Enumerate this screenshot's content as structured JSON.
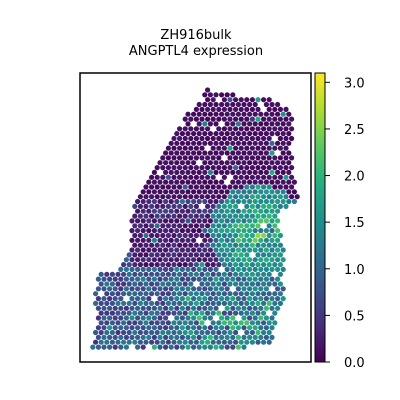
{
  "chart_data": {
    "type": "scatter",
    "subtype": "spatial-hexbin-expression",
    "title_line1": "ZH916bulk",
    "title_line2": "ANGPTL4 expression",
    "xlabel": "",
    "ylabel": "",
    "colorbar": {
      "colormap": "viridis",
      "range": [
        0.0,
        3.1
      ],
      "ticks": [
        0.0,
        0.5,
        1.0,
        1.5,
        2.0,
        2.5,
        3.0
      ],
      "tick_labels": [
        "0.0",
        "0.5",
        "1.0",
        "1.5",
        "2.0",
        "2.5",
        "3.0"
      ]
    },
    "axes_ticks_visible": false,
    "grid": false,
    "regions": [
      {
        "name": "upper tissue",
        "typical_expression": 0.1
      },
      {
        "name": "lower-left tissue",
        "typical_expression": 0.8
      },
      {
        "name": "right mid hotspot",
        "typical_expression": 2.2
      }
    ]
  },
  "colors": {
    "frame": "#000000",
    "background": "#ffffff",
    "viridis_low": "#440154",
    "viridis_high": "#fde725"
  }
}
